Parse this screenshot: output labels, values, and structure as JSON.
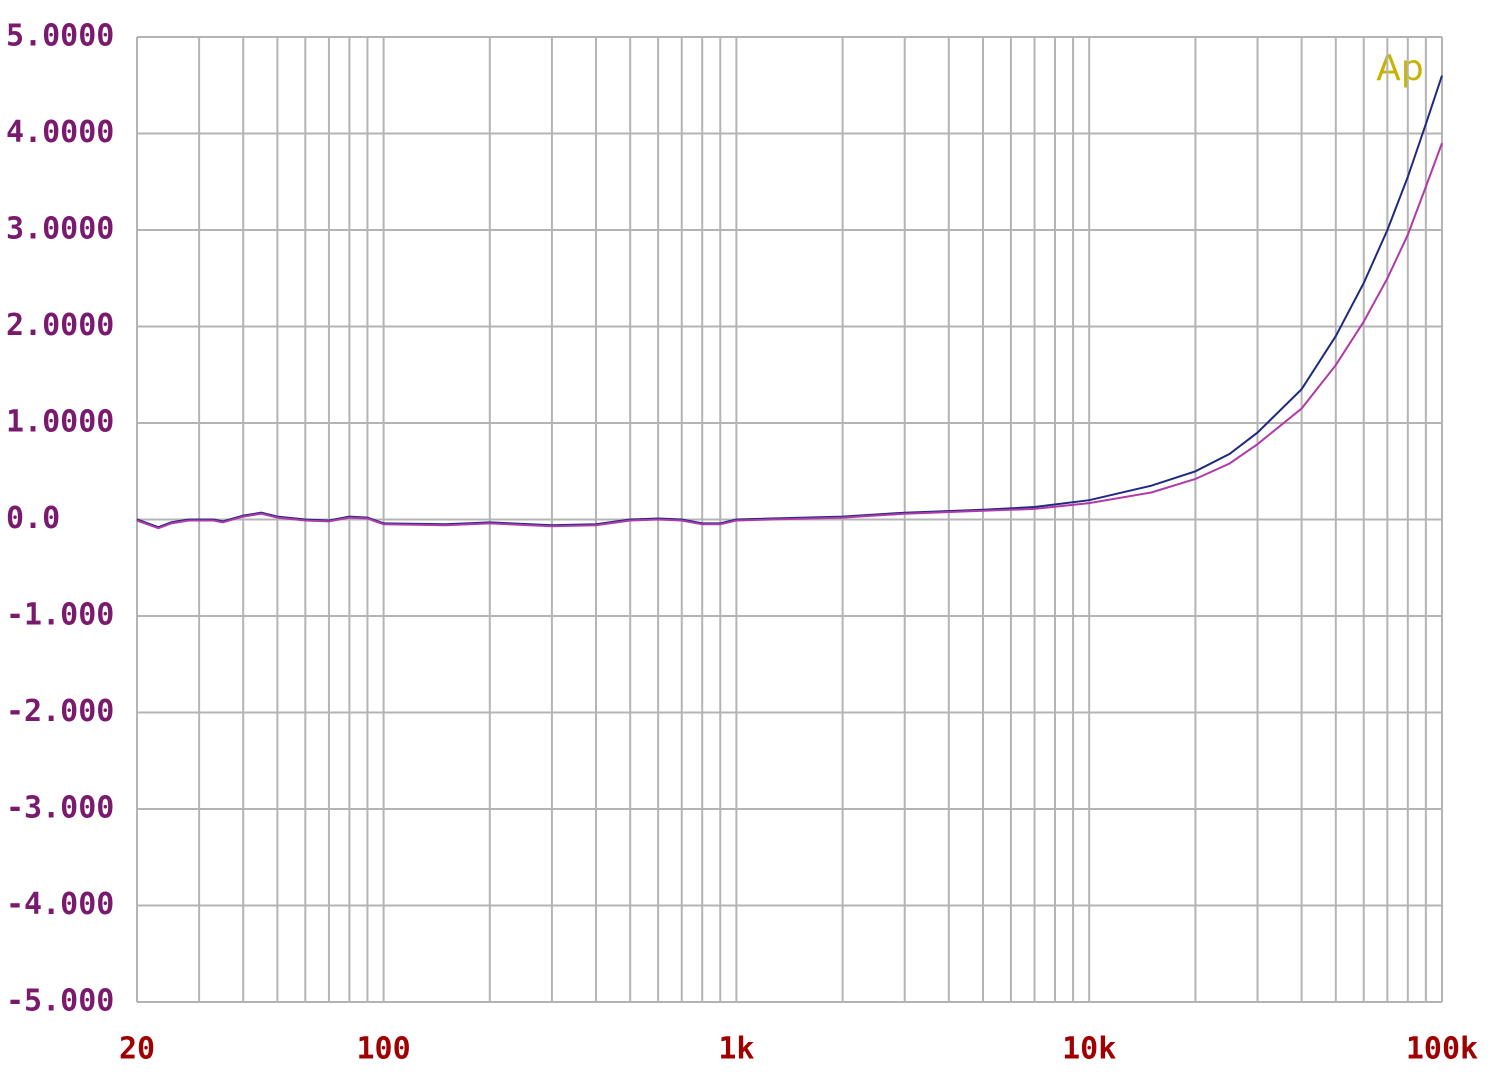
{
  "chart_data": {
    "type": "line",
    "annotation": "Ap",
    "x": [
      20,
      23,
      25,
      28,
      33,
      35,
      40,
      45,
      50,
      60,
      70,
      80,
      90,
      100,
      150,
      200,
      300,
      400,
      500,
      600,
      700,
      800,
      900,
      1000,
      2000,
      3000,
      5000,
      7000,
      10000,
      15000,
      20000,
      25000,
      30000,
      40000,
      50000,
      60000,
      70000,
      80000,
      90000,
      100000
    ],
    "series": [
      {
        "color": "#1f2a80",
        "values": [
          0.0,
          -0.08,
          -0.03,
          0.0,
          0.0,
          -0.02,
          0.04,
          0.07,
          0.03,
          0.0,
          -0.01,
          0.03,
          0.02,
          -0.04,
          -0.05,
          -0.03,
          -0.06,
          -0.05,
          0.0,
          0.01,
          0.0,
          -0.04,
          -0.04,
          0.0,
          0.03,
          0.07,
          0.1,
          0.13,
          0.2,
          0.35,
          0.5,
          0.68,
          0.9,
          1.35,
          1.9,
          2.45,
          3.0,
          3.55,
          4.1,
          4.6
        ]
      },
      {
        "color": "#b03aa8",
        "values": [
          -0.01,
          -0.09,
          -0.04,
          -0.01,
          -0.01,
          -0.03,
          0.03,
          0.06,
          0.02,
          -0.01,
          -0.02,
          0.02,
          0.01,
          -0.05,
          -0.06,
          -0.04,
          -0.07,
          -0.06,
          -0.01,
          0.0,
          -0.01,
          -0.05,
          -0.05,
          -0.01,
          0.02,
          0.06,
          0.09,
          0.11,
          0.17,
          0.28,
          0.42,
          0.58,
          0.78,
          1.15,
          1.6,
          2.05,
          2.5,
          2.95,
          3.45,
          3.9
        ]
      }
    ],
    "xlog": true,
    "xlim": [
      20,
      100000
    ],
    "xticks": [
      20,
      100,
      {
        "value": 1000,
        "label": "1k"
      },
      {
        "value": 10000,
        "label": "10k"
      },
      {
        "value": 100000,
        "label": "100k"
      }
    ],
    "xgrid": [
      30,
      40,
      50,
      60,
      70,
      80,
      90,
      200,
      300,
      400,
      500,
      600,
      700,
      800,
      900,
      2000,
      3000,
      4000,
      5000,
      6000,
      7000,
      8000,
      9000,
      20000,
      30000,
      40000,
      50000,
      60000,
      70000,
      80000,
      90000
    ],
    "ylim": [
      -5,
      5
    ],
    "yticks": [
      {
        "value": -5,
        "label": "-5.000"
      },
      {
        "value": -4,
        "label": "-4.000"
      },
      {
        "value": -3,
        "label": "-3.000"
      },
      {
        "value": -2,
        "label": "-2.000"
      },
      {
        "value": -1,
        "label": "-1.000"
      },
      {
        "value": 0,
        "label": "0.0"
      },
      {
        "value": 1,
        "label": "1.0000"
      },
      {
        "value": 2,
        "label": "2.0000"
      },
      {
        "value": 3,
        "label": "3.0000"
      },
      {
        "value": 4,
        "label": "4.0000"
      },
      {
        "value": 5,
        "label": "5.0000"
      }
    ],
    "grid": true
  }
}
